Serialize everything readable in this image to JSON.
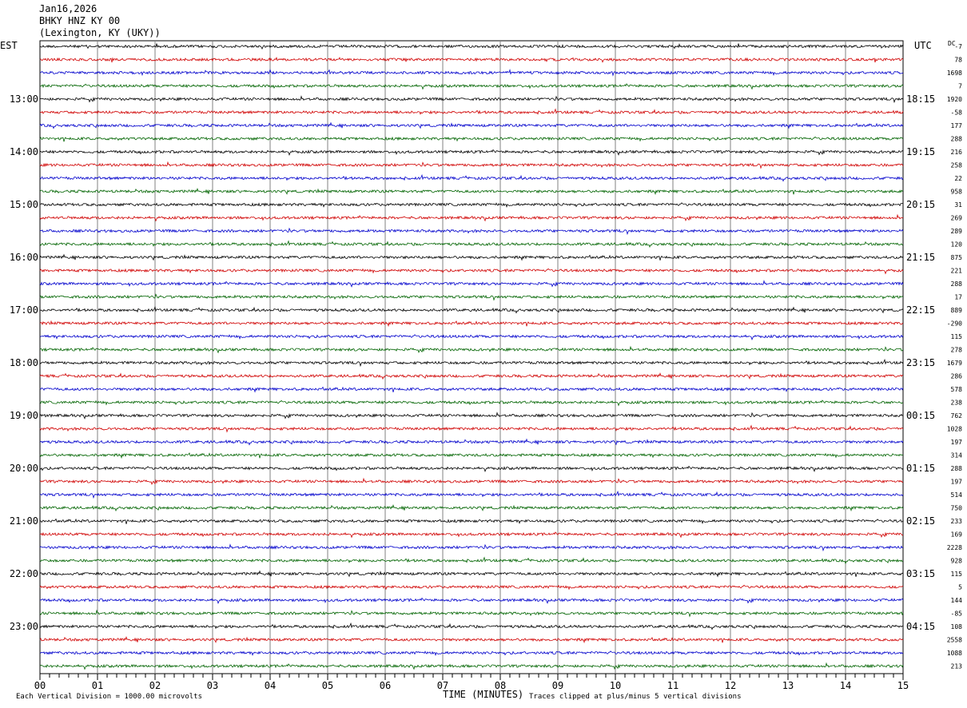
{
  "header": {
    "date": "Jan16,2026",
    "station": "BHKY HNZ KY 00",
    "location": "(Lexington, KY (UKY))"
  },
  "left_tz": "EST",
  "right_tz": "UTC",
  "dc_label": "DC",
  "footer": {
    "left": "Each Vertical Division = 1000.00 microvolts",
    "right": "Traces clipped at plus/minus 5 vertical divisions"
  },
  "colors": {
    "traces": [
      "#000000",
      "#d00000",
      "#0000cc",
      "#006400"
    ],
    "grid": "#808080"
  },
  "chart_data": {
    "type": "line",
    "title": "BHKY HNZ KY 00",
    "xlabel": "TIME (MINUTES)",
    "x_ticks": [
      "00",
      "01",
      "02",
      "03",
      "04",
      "05",
      "06",
      "07",
      "08",
      "09",
      "10",
      "11",
      "12",
      "13",
      "14",
      "15"
    ],
    "xlim": [
      0,
      15
    ],
    "rows_per_hour": 4,
    "hour_labels_est": [
      "13:00",
      "14:00",
      "15:00",
      "16:00",
      "17:00",
      "18:00",
      "19:00",
      "20:00",
      "21:00",
      "22:00",
      "23:00"
    ],
    "hour_labels_utc": [
      "18:15",
      "19:15",
      "20:15",
      "21:15",
      "22:15",
      "23:15",
      "00:15",
      "01:15",
      "02:15",
      "03:15",
      "04:15"
    ],
    "dc_offsets": [
      "-7",
      "78",
      "1698",
      "7",
      "1920",
      "-58",
      "177",
      "288",
      "216",
      "258",
      "22",
      "958",
      "31",
      "269",
      "289",
      "120",
      "875",
      "221",
      "288",
      "17",
      "889",
      "-290",
      "115",
      "278",
      "1679",
      "286",
      "578",
      "238",
      "762",
      "1028",
      "197",
      "314",
      "288",
      "197",
      "514",
      "750",
      "233",
      "169",
      "2228",
      "928",
      "115",
      "5",
      "144",
      "-85",
      "108",
      "2558",
      "1088",
      "213"
    ]
  }
}
